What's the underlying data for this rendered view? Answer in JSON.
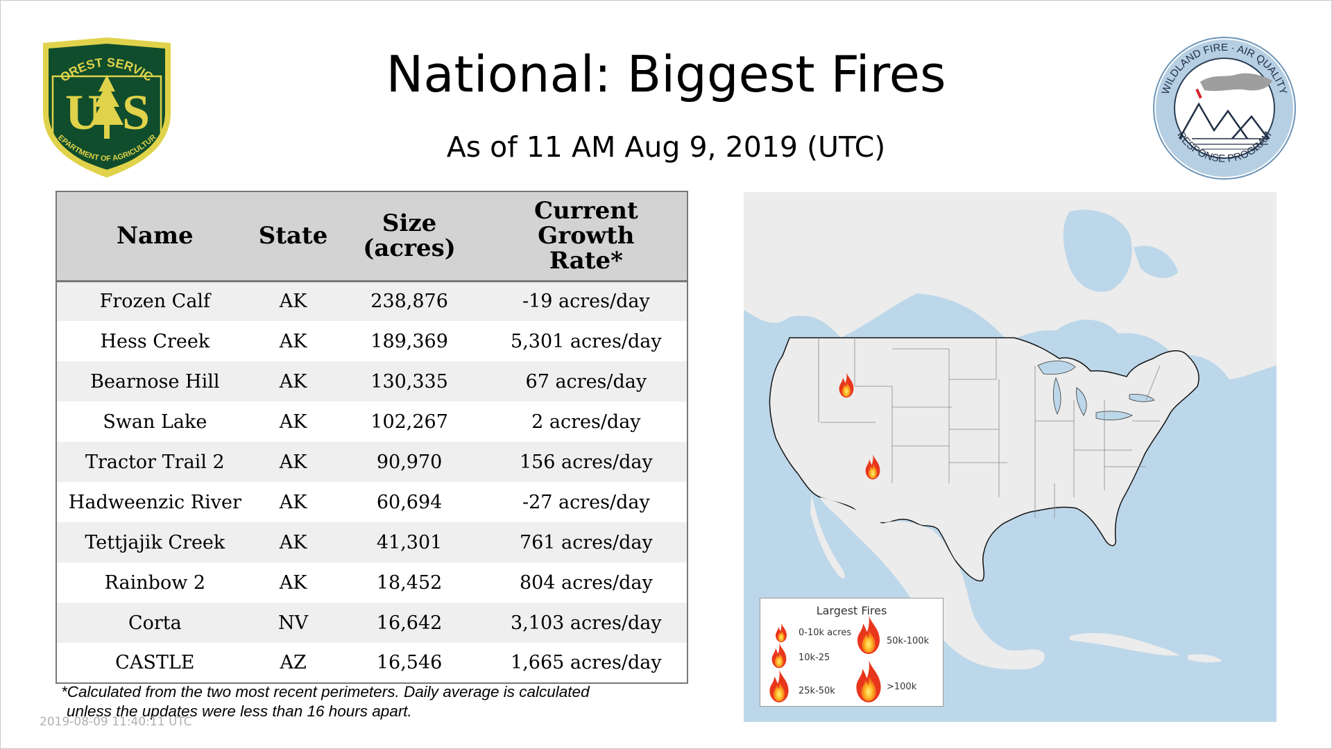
{
  "title": "National: Biggest Fires",
  "subtitle": "As of 11 AM Aug  9, 2019 (UTC)",
  "forest_service_logo": {
    "top_text": "FOREST SERVICE",
    "letters": "U S",
    "bottom_text": "DEPARTMENT OF AGRICULTURE",
    "icon": "us-forest-service-shield-icon"
  },
  "wfaqrp_logo": {
    "top_text": "WILDLAND FIRE · AIR QUALITY",
    "bottom_text": "RESPONSE PROGRAM",
    "icon": "mountains-smoke-icon"
  },
  "table": {
    "headers": {
      "name": "Name",
      "state": "State",
      "size_line1": "Size",
      "size_line2": "(acres)",
      "rate_line1": "Current",
      "rate_line2": "Growth",
      "rate_line3": "Rate*"
    },
    "rows": [
      {
        "name": "Frozen Calf",
        "state": "AK",
        "size": "238,876",
        "rate": "-19 acres/day"
      },
      {
        "name": "Hess Creek",
        "state": "AK",
        "size": "189,369",
        "rate": "5,301 acres/day"
      },
      {
        "name": "Bearnose Hill",
        "state": "AK",
        "size": "130,335",
        "rate": "67 acres/day"
      },
      {
        "name": "Swan Lake",
        "state": "AK",
        "size": "102,267",
        "rate": "2 acres/day"
      },
      {
        "name": "Tractor Trail 2",
        "state": "AK",
        "size": "90,970",
        "rate": "156 acres/day"
      },
      {
        "name": "Hadweenzic River",
        "state": "AK",
        "size": "60,694",
        "rate": "-27 acres/day"
      },
      {
        "name": "Tettjajik Creek",
        "state": "AK",
        "size": "41,301",
        "rate": "761 acres/day"
      },
      {
        "name": "Rainbow 2",
        "state": "AK",
        "size": "18,452",
        "rate": "804 acres/day"
      },
      {
        "name": "Corta",
        "state": "NV",
        "size": "16,642",
        "rate": "3,103 acres/day"
      },
      {
        "name": "CASTLE",
        "state": "AZ",
        "size": "16,546",
        "rate": "1,665 acres/day"
      }
    ]
  },
  "footnote": {
    "line1": "*Calculated from the two most recent perimeters. Daily average is calculated",
    "line2": "unless the updates were less than 16 hours apart."
  },
  "timestamp": "2019-08-09 11:40:11 UTC",
  "map": {
    "fire_markers": [
      {
        "fire": "Corta",
        "state": "NV",
        "size_class": "10k-25"
      },
      {
        "fire": "CASTLE",
        "state": "AZ",
        "size_class": "10k-25"
      }
    ],
    "legend": {
      "title": "Largest Fires",
      "items": [
        "0-10k acres",
        "10k-25",
        "25k-50k",
        "50k-100k",
        ">100k"
      ]
    },
    "colors": {
      "water": "#bdd7ea",
      "land": "#ececec",
      "flame_outer": "#e8361c",
      "flame_inner": "#ffd23a"
    }
  }
}
